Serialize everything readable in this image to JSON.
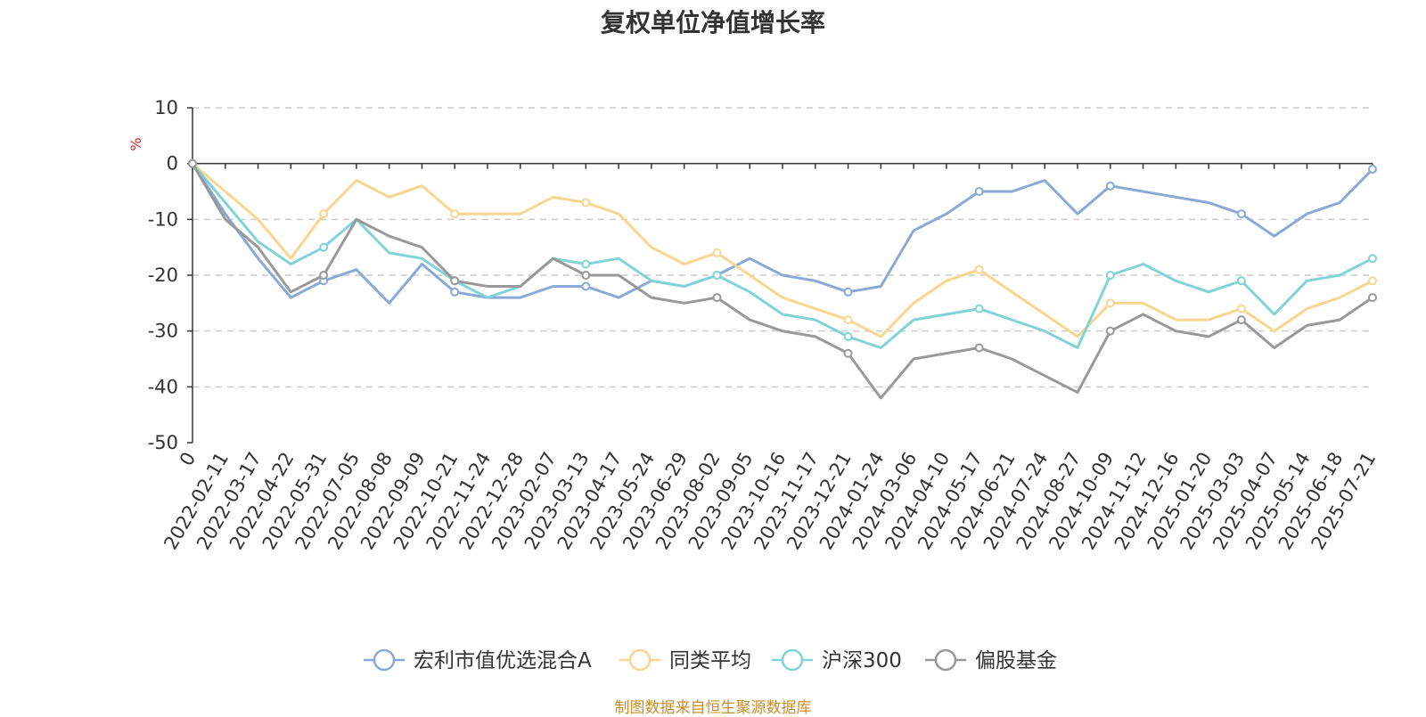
{
  "chart_data": {
    "type": "line",
    "title": "复权单位净值增长率",
    "ylabel": "%",
    "ylim": [
      -50,
      10
    ],
    "yticks": [
      10,
      0,
      -10,
      -20,
      -30,
      -40,
      -50
    ],
    "grid": true,
    "legend_position": "bottom-center",
    "x_tick_labels": [
      "0",
      "2022-02-11",
      "2022-03-17",
      "2022-04-22",
      "2022-05-31",
      "2022-07-05",
      "2022-08-08",
      "2022-09-09",
      "2022-10-21",
      "2022-11-24",
      "2022-12-28",
      "2023-02-07",
      "2023-03-13",
      "2023-04-17",
      "2023-05-24",
      "2023-06-29",
      "2023-08-02",
      "2023-09-05",
      "2023-10-16",
      "2023-11-17",
      "2023-12-21",
      "2024-01-24",
      "2024-03-06",
      "2024-04-10",
      "2024-05-17",
      "2024-06-21",
      "2024-07-24",
      "2024-08-27",
      "2024-10-09",
      "2024-11-12",
      "2024-12-16",
      "2025-01-20",
      "2025-03-03",
      "2025-04-07",
      "2025-05-14",
      "2025-06-18",
      "2025-07-21"
    ],
    "series": [
      {
        "name": "宏利市值优选混合A",
        "color": "#8aa9d6",
        "values": [
          0,
          -9,
          -17,
          -24,
          -21,
          -19,
          -25,
          -18,
          -23,
          -24,
          -24,
          -22,
          -22,
          -24,
          -21,
          -22,
          -20,
          -17,
          -20,
          -21,
          -23,
          -22,
          -12,
          -9,
          -5,
          -5,
          -3,
          -9,
          -4,
          -5,
          -6,
          -7,
          -9,
          -13,
          -9,
          -7,
          -1
        ]
      },
      {
        "name": "同类平均",
        "color": "#f9d58f",
        "values": [
          0,
          -5,
          -10,
          -17,
          -9,
          -3,
          -6,
          -4,
          -9,
          -9,
          -9,
          -6,
          -7,
          -9,
          -15,
          -18,
          -16,
          -20,
          -24,
          -26,
          -28,
          -31,
          -25,
          -21,
          -19,
          -23,
          -27,
          -31,
          -25,
          -25,
          -28,
          -28,
          -26,
          -30,
          -26,
          -24,
          -21
        ]
      },
      {
        "name": "沪深300",
        "color": "#80d3d6",
        "values": [
          0,
          -7,
          -14,
          -18,
          -15,
          -10,
          -16,
          -17,
          -21,
          -24,
          -22,
          -17,
          -18,
          -17,
          -21,
          -22,
          -20,
          -23,
          -27,
          -28,
          -31,
          -33,
          -28,
          -27,
          -26,
          -28,
          -30,
          -33,
          -20,
          -18,
          -21,
          -23,
          -21,
          -27,
          -21,
          -20,
          -17
        ]
      },
      {
        "name": "偏股基金",
        "color": "#999999",
        "values": [
          0,
          -10,
          -15,
          -23,
          -20,
          -10,
          -13,
          -15,
          -21,
          -22,
          -22,
          -17,
          -20,
          -20,
          -24,
          -25,
          -24,
          -28,
          -30,
          -31,
          -34,
          -42,
          -35,
          -34,
          -33,
          -35,
          -38,
          -41,
          -30,
          -27,
          -30,
          -31,
          -28,
          -33,
          -29,
          -28,
          -24
        ]
      }
    ]
  },
  "source_note": "制图数据来自恒生聚源数据库"
}
